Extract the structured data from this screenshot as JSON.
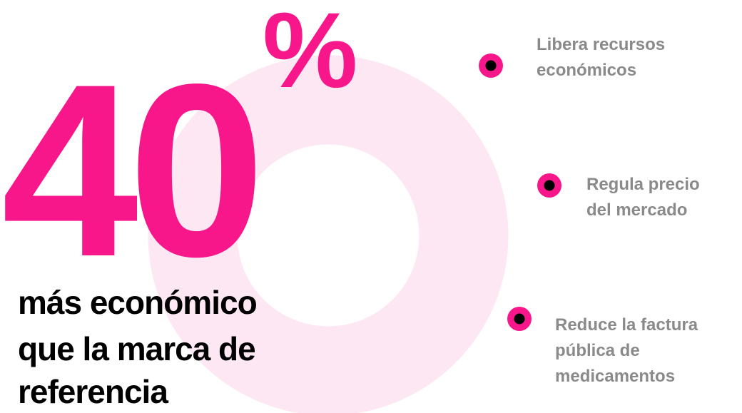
{
  "headline": {
    "number": "40",
    "unit": "%"
  },
  "subtitle": [
    "más económico",
    "que la marca de",
    "referencia"
  ],
  "benefits": [
    {
      "lines": [
        "Libera recursos",
        "económicos"
      ]
    },
    {
      "lines": [
        "Regula precio",
        "del mercado"
      ]
    },
    {
      "lines": [
        "Reduce la factura",
        "pública de",
        "medicamentos"
      ]
    }
  ]
}
